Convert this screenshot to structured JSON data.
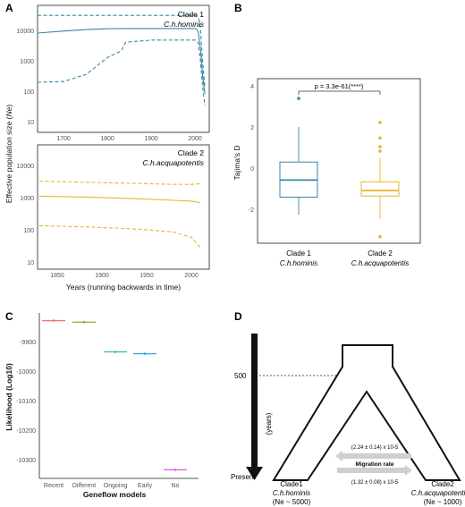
{
  "panels": {
    "A": {
      "label": "A",
      "ylabel_parts": [
        "Effective population size (",
        "Ne",
        ")"
      ],
      "xlabel": "Years (running backwards in time)",
      "top": {
        "clade": "Clade 1",
        "species": "C.h.hominis",
        "yticks": [
          "10",
          "100",
          "1000",
          "10000"
        ],
        "xticks": [
          "1700",
          "1800",
          "1900",
          "2000"
        ],
        "color": "#3a86a8"
      },
      "bottom": {
        "clade": "Clade 2",
        "species": "C.h.acquapotentis",
        "yticks": [
          "10",
          "100",
          "1000",
          "10000"
        ],
        "xticks": [
          "1850",
          "1900",
          "1950",
          "2000"
        ],
        "color": "#e6b730"
      }
    },
    "B": {
      "label": "B",
      "ylabel": "Tajima's D",
      "pvalue": "p = 3.3e-61(****)",
      "yticks": [
        "-2",
        "0",
        "2",
        "4"
      ],
      "groups": [
        {
          "clade": "Clade 1",
          "species": "C.h.hominis",
          "color": "#3a86a8"
        },
        {
          "clade": "Clade 2",
          "species": "C.h.acquapotentis",
          "color": "#e6b730"
        }
      ]
    },
    "C": {
      "label": "C",
      "ylabel": "Likelihood (Log10)",
      "xlabel": "Geneflow models",
      "yticks": [
        "-9900",
        "-10000",
        "-10100",
        "-10200",
        "-10300"
      ],
      "categories": [
        "Recent",
        "Different",
        "Ongoing",
        "Early",
        "No"
      ],
      "colors": [
        "#e8786f",
        "#a5a02a",
        "#3bb89c",
        "#3aa6d6",
        "#d45fe0"
      ]
    },
    "D": {
      "label": "D",
      "time_mark": "500",
      "years_label": "(years)",
      "present_label": "Present",
      "migration_top": "(2.24 ± 0.14) x 10-5",
      "migration_label": "Migration rate",
      "migration_bottom": "(1.32 ± 0.08) x 10-5",
      "clade1": {
        "name": "Clade1",
        "species": "C.h.hominis",
        "ne": "(Ne ~ 5000)"
      },
      "clade2": {
        "name": "Clade2",
        "species": "C.h.acquapotentis",
        "ne": "(Ne ~ 1000)"
      }
    }
  },
  "chart_data": [
    {
      "type": "line",
      "panel": "A-top",
      "title": "Clade 1 C.h.hominis",
      "xlabel": "Years (running backwards in time)",
      "ylabel": "Effective population size (Ne)",
      "yscale": "log",
      "xlim": [
        1640,
        2030
      ],
      "ylim": [
        10,
        20000
      ],
      "x": [
        1640,
        1700,
        1750,
        1800,
        1830,
        1840,
        1900,
        1950,
        2000,
        2005,
        2010,
        2015,
        2020
      ],
      "series": [
        {
          "values": [
            3800,
            4300,
            4700,
            4950,
            5000,
            5000,
            5000,
            5000,
            5000,
            4200,
            1500,
            300,
            100
          ]
        },
        {
          "values": [
            11000,
            11000,
            11000,
            11000,
            11000,
            11000,
            11000,
            11000,
            11000,
            10000,
            5000,
            700,
            150
          ]
        },
        {
          "values": [
            200,
            210,
            320,
            900,
            1300,
            2200,
            2500,
            2500,
            2500,
            2100,
            700,
            150,
            50
          ]
        }
      ]
    },
    {
      "type": "line",
      "panel": "A-bottom",
      "title": "Clade 2 C.h.acquapotentis",
      "xlabel": "Years (running backwards in time)",
      "ylabel": "Effective population size (Ne)",
      "yscale": "log",
      "xlim": [
        1838,
        2030
      ],
      "ylim": [
        7,
        30000
      ],
      "x": [
        1840,
        1870,
        1900,
        1930,
        1960,
        1990,
        2010,
        2020
      ],
      "series": [
        {
          "values": [
            950,
            920,
            880,
            830,
            780,
            720,
            680,
            620
          ]
        },
        {
          "values": [
            2600,
            2500,
            2400,
            2300,
            2200,
            2100,
            2100,
            2200
          ]
        },
        {
          "values": [
            130,
            125,
            118,
            110,
            100,
            85,
            60,
            30
          ]
        }
      ]
    },
    {
      "type": "box",
      "panel": "B",
      "ylabel": "Tajima's D",
      "ylim": [
        -3,
        4.5
      ],
      "categories": [
        "Clade 1",
        "Clade 2"
      ],
      "boxes": [
        {
          "min": -1.7,
          "q1": -0.9,
          "median": -0.12,
          "q3": 0.7,
          "max": 2.3,
          "outliers": [
            3.6
          ]
        },
        {
          "min": -1.9,
          "q1": -0.85,
          "median": -0.6,
          "q3": -0.2,
          "max": 0.9,
          "outliers": [
            1.2,
            1.4,
            1.8,
            2.5,
            -2.7
          ]
        }
      ],
      "annotation": "p = 3.3e-61(****)"
    },
    {
      "type": "scatter",
      "panel": "C",
      "xlabel": "Geneflow models",
      "ylabel": "Likelihood (Log10)",
      "ylim": [
        -10390,
        -9850
      ],
      "categories": [
        "Recent",
        "Different",
        "Ongoing",
        "Early",
        "No"
      ],
      "values": [
        -9875,
        -9880,
        -9977,
        -9983,
        -10362
      ]
    }
  ]
}
